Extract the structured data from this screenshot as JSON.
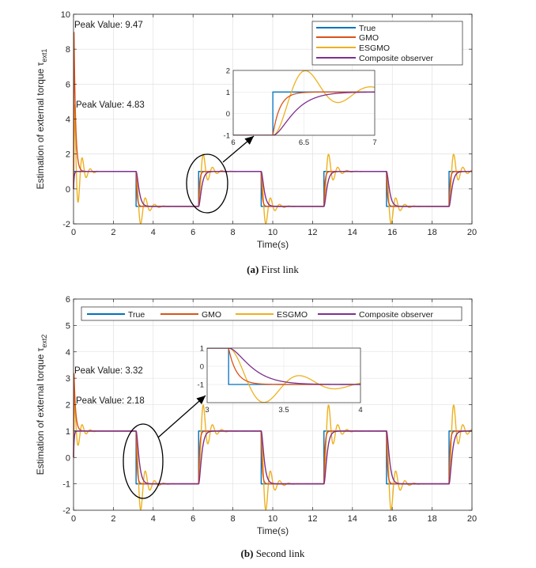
{
  "chart_data": [
    {
      "type": "line",
      "caption_label": "(a)",
      "caption_text": "First link",
      "xlabel": "Time(s)",
      "ylabel": "Estimation of external torque τ",
      "ylabel_sub": "ext1",
      "xlim": [
        0,
        20
      ],
      "ylim": [
        -2,
        10
      ],
      "xticks": [
        "0",
        "2",
        "4",
        "6",
        "8",
        "10",
        "12",
        "14",
        "16",
        "18",
        "20"
      ],
      "yticks": [
        "-2",
        "0",
        "2",
        "4",
        "6",
        "8",
        "10"
      ],
      "legend_layout": "vertical",
      "legend_position": "top-right",
      "annotations": [
        "Peak Value: 9.47",
        "Peak Value: 4.83"
      ],
      "peaks": [
        9.47,
        4.83
      ],
      "start_level": 1,
      "switch_times": [
        3.14,
        6.28,
        9.42,
        12.57,
        15.71,
        18.85
      ],
      "series": [
        {
          "name": "True",
          "color": "#0072BD"
        },
        {
          "name": "GMO",
          "color": "#D95319"
        },
        {
          "name": "ESGMO",
          "color": "#EDB120"
        },
        {
          "name": "Composite observer",
          "color": "#7E2F8E"
        }
      ],
      "inset": {
        "xlim": [
          6,
          7
        ],
        "ylim": [
          -1,
          2
        ],
        "xticks": [
          "6",
          "6.5",
          "7"
        ],
        "yticks": [
          "-1",
          "0",
          "1",
          "2"
        ]
      }
    },
    {
      "type": "line",
      "caption_label": "(b)",
      "caption_text": "Second link",
      "xlabel": "Time(s)",
      "ylabel": "Estimation of external torque τ",
      "ylabel_sub": "ext2",
      "xlim": [
        0,
        20
      ],
      "ylim": [
        -2,
        6
      ],
      "xticks": [
        "0",
        "2",
        "4",
        "6",
        "8",
        "10",
        "12",
        "14",
        "16",
        "18",
        "20"
      ],
      "yticks": [
        "-2",
        "-1",
        "0",
        "1",
        "2",
        "3",
        "4",
        "5",
        "6"
      ],
      "legend_layout": "horizontal",
      "legend_position": "top",
      "annotations": [
        "Peak Value: 3.32",
        "Peak Value: 2.18"
      ],
      "peaks": [
        3.32,
        2.18
      ],
      "start_level": 1,
      "switch_times": [
        3.14,
        6.28,
        9.42,
        12.57,
        15.71,
        18.85
      ],
      "series": [
        {
          "name": "True",
          "color": "#0072BD"
        },
        {
          "name": "GMO",
          "color": "#D95319"
        },
        {
          "name": "ESGMO",
          "color": "#EDB120"
        },
        {
          "name": "Composite observer",
          "color": "#7E2F8E"
        }
      ],
      "inset": {
        "xlim": [
          3,
          4
        ],
        "ylim": [
          -2,
          1
        ],
        "xticks": [
          "3",
          "3.5",
          "4"
        ],
        "yticks": [
          "-1",
          "0",
          "1"
        ]
      }
    }
  ]
}
